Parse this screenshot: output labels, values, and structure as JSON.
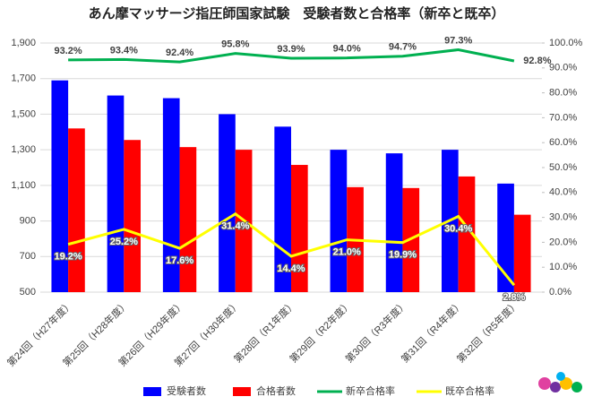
{
  "chart_data": {
    "type": "bar_line",
    "title": "あん摩マッサージ指圧師国家試験　受験者数と合格率（新卒と既卒）",
    "categories": [
      "第24回（H27年度）",
      "第25回（H28年度）",
      "第26回（H29年度）",
      "第27回（H30年度）",
      "第28回（R1年度）",
      "第29回（R2年度）",
      "第30回（R3年度）",
      "第31回（R4年度）",
      "第32回（R5年度）"
    ],
    "ylim": [
      500,
      1900
    ],
    "yticks": [
      500,
      700,
      900,
      {
        "value": 1100,
        "label": "1,100"
      },
      {
        "value": 1300,
        "label": "1,300"
      },
      {
        "value": 1500,
        "label": "1,500"
      },
      {
        "value": 1700,
        "label": "1,700"
      },
      {
        "value": 1900,
        "label": "1,900"
      }
    ],
    "y2lim": [
      0,
      100
    ],
    "y2ticks": [
      {
        "value": 0,
        "label": "0.0%"
      },
      {
        "value": 10,
        "label": "10.0%"
      },
      {
        "value": 20,
        "label": "20.0%"
      },
      {
        "value": 30,
        "label": "30.0%"
      },
      {
        "value": 40,
        "label": "40.0%"
      },
      {
        "value": 50,
        "label": "50.0%"
      },
      {
        "value": 60,
        "label": "60.0%"
      },
      {
        "value": 70,
        "label": "70.0%"
      },
      {
        "value": 80,
        "label": "80.0%"
      },
      {
        "value": 90,
        "label": "90.0%"
      },
      {
        "value": 100,
        "label": "100.0%"
      }
    ],
    "grid": true,
    "legend": "bottom",
    "series": [
      {
        "name": "受験者数",
        "type": "bar",
        "color": "#0000ff",
        "values": [
          1690,
          1605,
          1590,
          1500,
          1430,
          1300,
          1280,
          1300,
          1110
        ]
      },
      {
        "name": "合格者数",
        "type": "bar",
        "color": "#ff0000",
        "values": [
          1420,
          1355,
          1315,
          1300,
          1215,
          1090,
          1085,
          1150,
          935
        ]
      },
      {
        "name": "新卒合格率",
        "type": "line",
        "axis": "y2",
        "color": "#00b050",
        "values": [
          93.2,
          93.4,
          92.4,
          95.8,
          93.9,
          94.0,
          94.7,
          97.3,
          92.8
        ],
        "value_labels": [
          "93.2%",
          "93.4%",
          "92.4%",
          "95.8%",
          "93.9%",
          "94.0%",
          "94.7%",
          "97.3%",
          "92.8%"
        ]
      },
      {
        "name": "既卒合格率",
        "type": "line",
        "axis": "y2",
        "color": "#ffff00",
        "values": [
          19.2,
          25.2,
          17.6,
          31.4,
          14.4,
          21.0,
          19.9,
          30.4,
          2.8
        ],
        "value_labels": [
          "19.2%",
          "25.2%",
          "17.6%",
          "31.4%",
          "14.4%",
          "21.0%",
          "19.9%",
          "30.4%",
          "2.8%"
        ]
      }
    ]
  }
}
